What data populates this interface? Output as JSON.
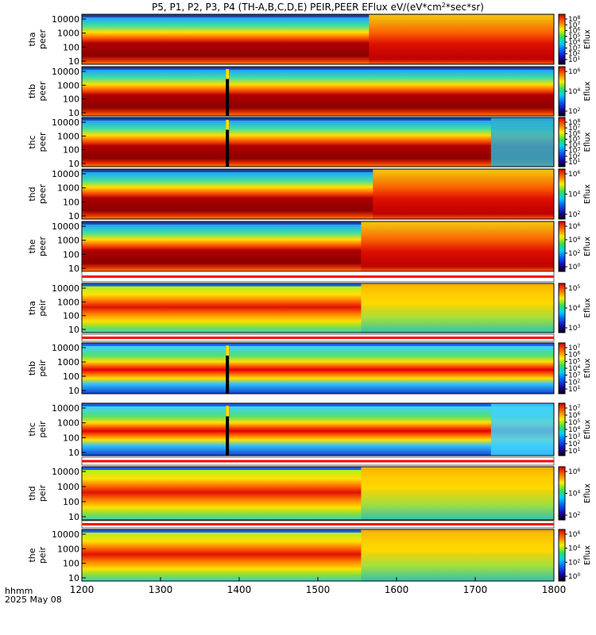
{
  "chart_data": {
    "type": "heatmap",
    "title": "P5, P1, P2, P3, P4 (TH-A,B,C,D,E) PEIR,PEER EFlux eV/(eV*cm",
    "title_sup": "2",
    "title_tail": "*sec*sr)",
    "x_unit_label": "hhmm",
    "date_label": "2025 May 08",
    "x_ticks": [
      "1200",
      "1300",
      "1400",
      "1500",
      "1600",
      "1700",
      "1800"
    ],
    "x_range": [
      1200,
      1800
    ],
    "y_scale": "log",
    "colorbar_label": "Eflux",
    "panels": [
      {
        "probe": "tha",
        "species": "peer",
        "y_ticks": [
          "10000",
          "1000",
          "100",
          "10"
        ],
        "cb_exps": [
          8,
          7,
          6,
          5,
          4,
          3,
          2,
          1
        ],
        "bg": "dark"
      },
      {
        "probe": "thb",
        "species": "peer",
        "y_ticks": [
          "10000",
          "1000",
          "100",
          "10"
        ],
        "cb_exps": [
          6,
          4,
          2
        ],
        "bg": "dark"
      },
      {
        "probe": "thc",
        "species": "peer",
        "y_ticks": [
          "10000",
          "1000",
          "100",
          "10"
        ],
        "cb_exps": [
          8,
          7,
          6,
          5,
          4,
          3,
          2,
          1
        ],
        "bg": "dark"
      },
      {
        "probe": "thd",
        "species": "peer",
        "y_ticks": [
          "10000",
          "1000",
          "100",
          "10"
        ],
        "cb_exps": [
          6,
          4,
          2
        ],
        "bg": "dark"
      },
      {
        "probe": "the",
        "species": "peer",
        "y_ticks": [
          "10000",
          "1000",
          "100",
          "10"
        ],
        "cb_exps": [
          6,
          4,
          2,
          0
        ],
        "bg": "dark"
      },
      {
        "probe": "tha",
        "species": "peir",
        "y_ticks": [
          "10000",
          "1000",
          "100",
          "10"
        ],
        "cb_exps": [
          5,
          4,
          3
        ],
        "bg": "ion"
      },
      {
        "probe": "thb",
        "species": "peir",
        "y_ticks": [
          "10000",
          "1000",
          "100",
          "10"
        ],
        "cb_exps": [
          7,
          6,
          5,
          4,
          3,
          2,
          1
        ],
        "bg": "ion"
      },
      {
        "probe": "thc",
        "species": "peir",
        "y_ticks": [
          "10000",
          "1000",
          "100",
          "10"
        ],
        "cb_exps": [
          7,
          6,
          5,
          4,
          3,
          2,
          1
        ],
        "bg": "ion"
      },
      {
        "probe": "thd",
        "species": "peir",
        "y_ticks": [
          "10000",
          "1000",
          "100",
          "10"
        ],
        "cb_exps": [
          6,
          4,
          2
        ],
        "bg": "ion"
      },
      {
        "probe": "the",
        "species": "peir",
        "y_ticks": [
          "10000",
          "1000",
          "100",
          "10"
        ],
        "cb_exps": [
          6,
          4,
          2,
          0
        ],
        "bg": "ion"
      }
    ],
    "colors": {
      "dark_red": "#8b0000",
      "red": "#e02020",
      "orange": "#ff8c00",
      "yellow": "#ffee00",
      "green": "#40d040",
      "cyan": "#00d0ff",
      "blue": "#0040ff",
      "navy": "#000080",
      "black": "#000000"
    }
  }
}
